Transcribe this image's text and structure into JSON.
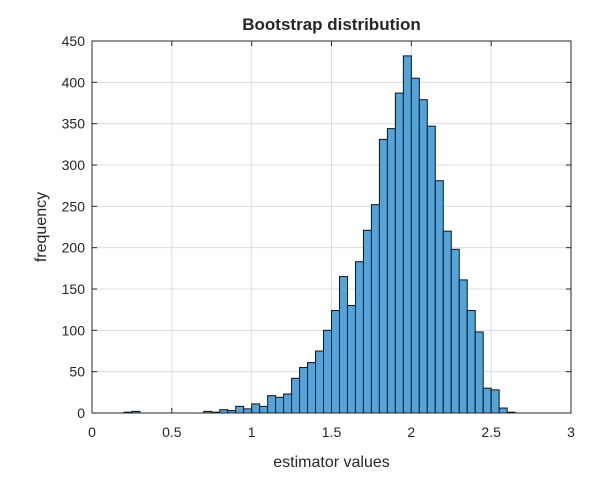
{
  "chart_data": {
    "type": "bar",
    "subtype": "histogram",
    "title": "Bootstrap distribution",
    "xlabel": "estimator values",
    "ylabel": "frequency",
    "xlim": [
      0,
      3
    ],
    "ylim": [
      0,
      450
    ],
    "xticks": [
      0,
      0.5,
      1,
      1.5,
      2,
      2.5,
      3
    ],
    "xtick_labels": [
      "0",
      "0.5",
      "1",
      "1.5",
      "2",
      "2.5",
      "3"
    ],
    "yticks": [
      0,
      50,
      100,
      150,
      200,
      250,
      300,
      350,
      400,
      450
    ],
    "ytick_labels": [
      "0",
      "50",
      "100",
      "150",
      "200",
      "250",
      "300",
      "350",
      "400",
      "450"
    ],
    "grid": true,
    "bar_color": "#56a3d8",
    "edge_color": "#111111",
    "bin_start": 0.2,
    "bin_width": 0.05,
    "values": [
      1,
      2,
      0,
      0,
      0,
      0,
      0,
      0,
      0,
      0,
      2,
      1,
      4,
      3,
      8,
      5,
      11,
      8,
      21,
      19,
      23,
      42,
      55,
      61,
      75,
      100,
      124,
      165,
      130,
      183,
      221,
      252,
      331,
      344,
      387,
      432,
      405,
      379,
      347,
      281,
      220,
      198,
      161,
      124,
      98,
      30,
      28,
      6,
      1
    ]
  }
}
